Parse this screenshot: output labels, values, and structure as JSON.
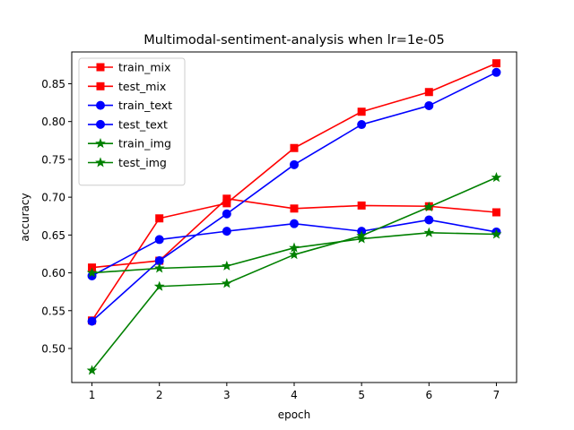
{
  "chart_data": {
    "type": "line",
    "title": "Multimodal-sentiment-analysis when lr=1e-05",
    "xlabel": "epoch",
    "ylabel": "accuracy",
    "x": [
      1,
      2,
      3,
      4,
      5,
      6,
      7
    ],
    "xlim": [
      0.7,
      7.3
    ],
    "ylim": [
      0.455,
      0.892
    ],
    "xticks": [
      1,
      2,
      3,
      4,
      5,
      6,
      7
    ],
    "yticks": [
      0.5,
      0.55,
      0.6,
      0.65,
      0.7,
      0.75,
      0.8,
      0.85
    ],
    "ytick_labels": [
      "0.50",
      "0.55",
      "0.60",
      "0.65",
      "0.70",
      "0.75",
      "0.80",
      "0.85"
    ],
    "grid": false,
    "legend_position": "upper-left",
    "series": [
      {
        "name": "train_mix",
        "color": "#ff0000",
        "marker": "square",
        "values": [
          0.537,
          0.672,
          0.692,
          0.765,
          0.813,
          0.839,
          0.877
        ]
      },
      {
        "name": "test_mix",
        "color": "#ff0000",
        "marker": "square",
        "values": [
          0.607,
          0.616,
          0.698,
          0.685,
          0.689,
          0.688,
          0.68
        ]
      },
      {
        "name": "train_text",
        "color": "#0000ff",
        "marker": "circle",
        "values": [
          0.536,
          0.616,
          0.678,
          0.743,
          0.796,
          0.821,
          0.865
        ]
      },
      {
        "name": "test_text",
        "color": "#0000ff",
        "marker": "circle",
        "values": [
          0.596,
          0.644,
          0.655,
          0.665,
          0.655,
          0.67,
          0.654
        ]
      },
      {
        "name": "train_img",
        "color": "#008000",
        "marker": "star",
        "values": [
          0.471,
          0.582,
          0.586,
          0.624,
          0.649,
          0.687,
          0.726
        ]
      },
      {
        "name": "test_img",
        "color": "#008000",
        "marker": "star",
        "values": [
          0.6,
          0.606,
          0.609,
          0.633,
          0.645,
          0.653,
          0.651
        ]
      }
    ]
  }
}
